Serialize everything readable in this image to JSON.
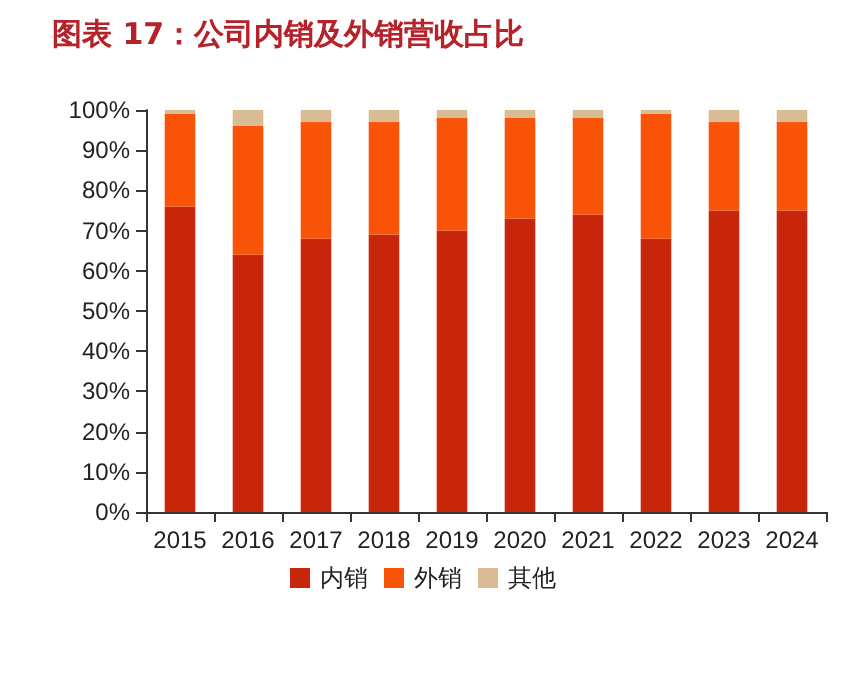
{
  "chart_data": {
    "type": "bar",
    "title": "图表 17：公司内销及外销营收占比",
    "stacked": true,
    "categories": [
      "2015",
      "2016",
      "2017",
      "2018",
      "2019",
      "2020",
      "2021",
      "2022",
      "2023",
      "2024"
    ],
    "series": [
      {
        "name": "内销",
        "color": "#c8260a",
        "values": [
          76,
          64,
          68,
          69,
          70,
          73,
          74,
          68,
          75,
          75
        ]
      },
      {
        "name": "外销",
        "color": "#fa5408",
        "values": [
          23,
          32,
          29,
          28,
          28,
          25,
          24,
          31,
          22,
          22
        ]
      },
      {
        "name": "其他",
        "color": "#d9bc94",
        "values": [
          1,
          4,
          3,
          3,
          2,
          2,
          2,
          1,
          3,
          3
        ]
      }
    ],
    "ylim": [
      0,
      100
    ],
    "yticks": [
      {
        "value": 0,
        "label": "0%"
      },
      {
        "value": 10,
        "label": "10%"
      },
      {
        "value": 20,
        "label": "20%"
      },
      {
        "value": 30,
        "label": "30%"
      },
      {
        "value": 40,
        "label": "40%"
      },
      {
        "value": 50,
        "label": "50%"
      },
      {
        "value": 60,
        "label": "60%"
      },
      {
        "value": 70,
        "label": "70%"
      },
      {
        "value": 80,
        "label": "80%"
      },
      {
        "value": 90,
        "label": "90%"
      },
      {
        "value": 100,
        "label": "100%"
      }
    ],
    "grid": false,
    "legend": "bottom"
  }
}
